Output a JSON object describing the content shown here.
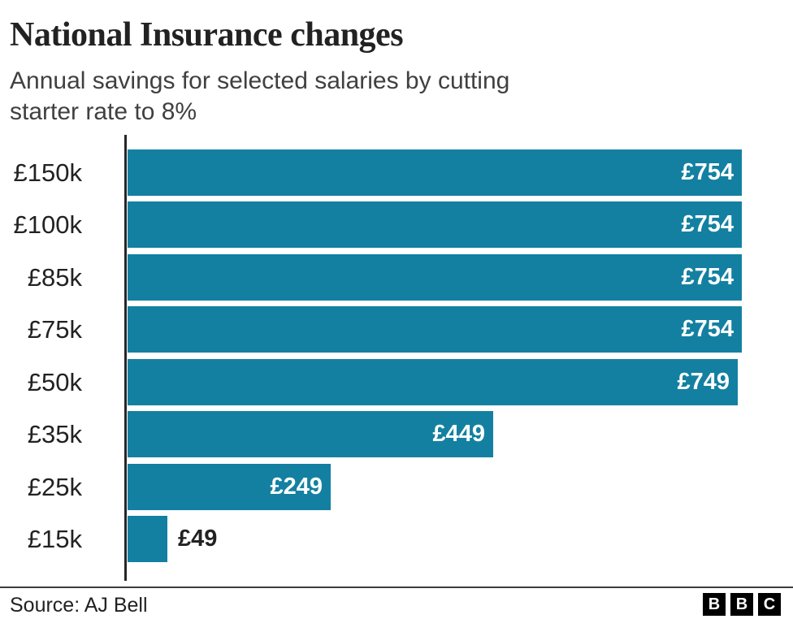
{
  "header": {
    "title": "National Insurance changes",
    "subtitle_lines": [
      "Annual savings for selected salaries by cutting",
      "starter rate to 8%"
    ]
  },
  "chart_data": {
    "type": "bar",
    "orientation": "horizontal",
    "title": "National Insurance changes",
    "subtitle": "Annual savings for selected salaries by cutting starter rate to 8%",
    "categories": [
      "£150k",
      "£100k",
      "£85k",
      "£75k",
      "£50k",
      "£35k",
      "£25k",
      "£15k"
    ],
    "values": [
      754,
      754,
      754,
      754,
      749,
      449,
      249,
      49
    ],
    "value_labels": [
      "£754",
      "£754",
      "£754",
      "£754",
      "£749",
      "£449",
      "£249",
      "£49"
    ],
    "label_inside": [
      true,
      true,
      true,
      true,
      true,
      true,
      true,
      false
    ],
    "xlabel": "",
    "ylabel": "",
    "xlim": [
      0,
      756
    ],
    "grid": false,
    "legend": false,
    "colors": {
      "bar": "#1380a1",
      "value_label_inside": "#ffffff",
      "value_label_outside": "#222222",
      "axis": "#262626",
      "text": "#222222"
    }
  },
  "footer": {
    "source": "Source: AJ Bell",
    "logo_letters": [
      "B",
      "B",
      "C"
    ]
  }
}
